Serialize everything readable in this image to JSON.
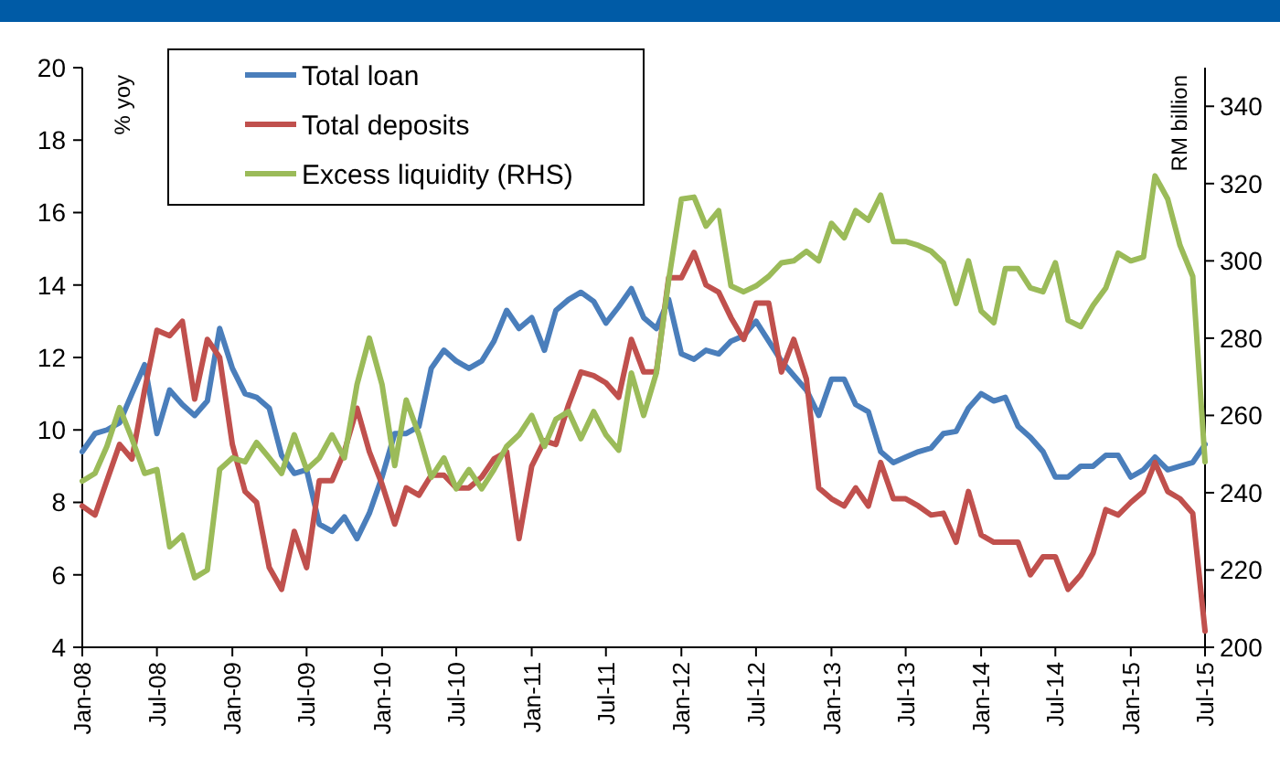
{
  "chart_data": {
    "type": "line",
    "ylabel": "% yoy",
    "y2label": "RM billion",
    "x": [
      "2008-01",
      "2008-02",
      "2008-03",
      "2008-04",
      "2008-05",
      "2008-06",
      "2008-07",
      "2008-08",
      "2008-09",
      "2008-10",
      "2008-11",
      "2008-12",
      "2009-01",
      "2009-02",
      "2009-03",
      "2009-04",
      "2009-05",
      "2009-06",
      "2009-07",
      "2009-08",
      "2009-09",
      "2009-10",
      "2009-11",
      "2009-12",
      "2010-01",
      "2010-02",
      "2010-03",
      "2010-04",
      "2010-05",
      "2010-06",
      "2010-07",
      "2010-08",
      "2010-09",
      "2010-10",
      "2010-11",
      "2010-12",
      "2011-01",
      "2011-02",
      "2011-03",
      "2011-04",
      "2011-05",
      "2011-06",
      "2011-07",
      "2011-08",
      "2011-09",
      "2011-10",
      "2011-11",
      "2011-12",
      "2012-01",
      "2012-02",
      "2012-03",
      "2012-04",
      "2012-05",
      "2012-06",
      "2012-07",
      "2012-08",
      "2012-09",
      "2012-10",
      "2012-11",
      "2012-12",
      "2013-01",
      "2013-02",
      "2013-03",
      "2013-04",
      "2013-05",
      "2013-06",
      "2013-07",
      "2013-08",
      "2013-09",
      "2013-10",
      "2013-11",
      "2013-12",
      "2014-01",
      "2014-02",
      "2014-03",
      "2014-04",
      "2014-05",
      "2014-06",
      "2014-07",
      "2014-08",
      "2014-09",
      "2014-10",
      "2014-11",
      "2014-12",
      "2015-01",
      "2015-02",
      "2015-03",
      "2015-04",
      "2015-05",
      "2015-06",
      "2015-07"
    ],
    "xlim": [
      "2008-01",
      "2015-07"
    ],
    "xticks": [
      {
        "value": "2008-01",
        "label": "Jan-08"
      },
      {
        "value": "2008-07",
        "label": "Jul-08"
      },
      {
        "value": "2009-01",
        "label": "Jan-09"
      },
      {
        "value": "2009-07",
        "label": "Jul-09"
      },
      {
        "value": "2010-01",
        "label": "Jan-10"
      },
      {
        "value": "2010-07",
        "label": "Jul-10"
      },
      {
        "value": "2011-01",
        "label": "Jan-11"
      },
      {
        "value": "2011-07",
        "label": "Jul-11"
      },
      {
        "value": "2012-01",
        "label": "Jan-12"
      },
      {
        "value": "2012-07",
        "label": "Jul-12"
      },
      {
        "value": "2013-01",
        "label": "Jan-13"
      },
      {
        "value": "2013-07",
        "label": "Jul-13"
      },
      {
        "value": "2014-01",
        "label": "Jan-14"
      },
      {
        "value": "2014-07",
        "label": "Jul-14"
      },
      {
        "value": "2015-01",
        "label": "Jan-15"
      },
      {
        "value": "2015-07",
        "label": "Jul-15"
      }
    ],
    "ylim": [
      4,
      20
    ],
    "yticks": [
      4,
      6,
      8,
      10,
      12,
      14,
      16,
      18,
      20
    ],
    "y2lim": [
      200,
      350
    ],
    "y2ticks": [
      200,
      220,
      240,
      260,
      280,
      300,
      320,
      340
    ],
    "grid": false,
    "legend": "top left",
    "line_style": "solid",
    "series": [
      {
        "name": "Total loan",
        "color": "#4a7ebb",
        "values": [
          9.4,
          9.9,
          10.0,
          10.2,
          11.0,
          11.8,
          9.9,
          11.1,
          10.7,
          10.4,
          10.8,
          12.8,
          11.7,
          11.0,
          10.9,
          10.6,
          9.3,
          8.8,
          8.9,
          7.4,
          7.2,
          7.6,
          7.0,
          7.7,
          8.7,
          9.9,
          9.9,
          10.1,
          11.7,
          12.2,
          11.9,
          11.7,
          11.9,
          12.45,
          13.3,
          12.8,
          13.1,
          12.2,
          13.3,
          13.6,
          13.8,
          13.55,
          12.95,
          13.4,
          13.9,
          13.1,
          12.8,
          13.6,
          12.1,
          11.95,
          12.2,
          12.1,
          12.45,
          12.6,
          13.0,
          12.45,
          11.9,
          11.5,
          11.1,
          10.4,
          11.4,
          11.4,
          10.7,
          10.5,
          9.4,
          9.1,
          9.25,
          9.4,
          9.5,
          9.9,
          9.96,
          10.6,
          11.0,
          10.8,
          10.9,
          10.1,
          9.8,
          9.4,
          8.7,
          8.7,
          9.0,
          9.0,
          9.3,
          9.3,
          8.7,
          8.9,
          9.25,
          8.9,
          9.0,
          9.1,
          9.6
        ]
      },
      {
        "name": "Total deposits",
        "color": "#c0504d",
        "values": [
          7.9,
          7.65,
          8.6,
          9.6,
          9.2,
          11.1,
          12.75,
          12.6,
          13.0,
          10.85,
          12.5,
          12.0,
          9.6,
          8.3,
          8.0,
          6.2,
          5.6,
          7.2,
          6.2,
          8.6,
          8.6,
          9.4,
          10.6,
          9.4,
          8.5,
          7.4,
          8.4,
          8.2,
          8.75,
          8.75,
          8.4,
          8.4,
          8.7,
          9.2,
          9.4,
          7.0,
          9.0,
          9.7,
          9.6,
          10.7,
          11.6,
          11.5,
          11.3,
          10.9,
          12.5,
          11.6,
          11.6,
          14.2,
          14.2,
          14.9,
          14.0,
          13.8,
          13.1,
          12.5,
          13.5,
          13.5,
          11.6,
          12.5,
          11.4,
          8.4,
          8.1,
          7.9,
          8.4,
          7.9,
          9.1,
          8.1,
          8.1,
          7.9,
          7.65,
          7.7,
          6.9,
          8.3,
          7.1,
          6.9,
          6.9,
          6.9,
          6.0,
          6.5,
          6.5,
          5.6,
          6.0,
          6.6,
          7.8,
          7.65,
          8.0,
          8.3,
          9.1,
          8.3,
          8.1,
          7.7,
          4.45
        ]
      },
      {
        "name": "Excess liquidity (RHS)",
        "color": "#9bbb59",
        "axis": "y2",
        "values": [
          243,
          245,
          252,
          262,
          254,
          245,
          246,
          226,
          229,
          218,
          220,
          246,
          249,
          248,
          253,
          249,
          245,
          255,
          246,
          249,
          255,
          249,
          268,
          280,
          268,
          247,
          264,
          255,
          244,
          249,
          241,
          246,
          241,
          246,
          252,
          255,
          260,
          252,
          259,
          261,
          254,
          261,
          255,
          251,
          271,
          260,
          271,
          295,
          316,
          316.5,
          309,
          313,
          293.5,
          292,
          293.5,
          296,
          299.5,
          300,
          302.5,
          300,
          309.7,
          306,
          313,
          310.5,
          317,
          305,
          305,
          304,
          302.5,
          299.5,
          289,
          300,
          287,
          284,
          298,
          298,
          293,
          292,
          299.5,
          284.6,
          283,
          288.5,
          293,
          302,
          300,
          301,
          322,
          316,
          304,
          296,
          248
        ]
      }
    ]
  }
}
